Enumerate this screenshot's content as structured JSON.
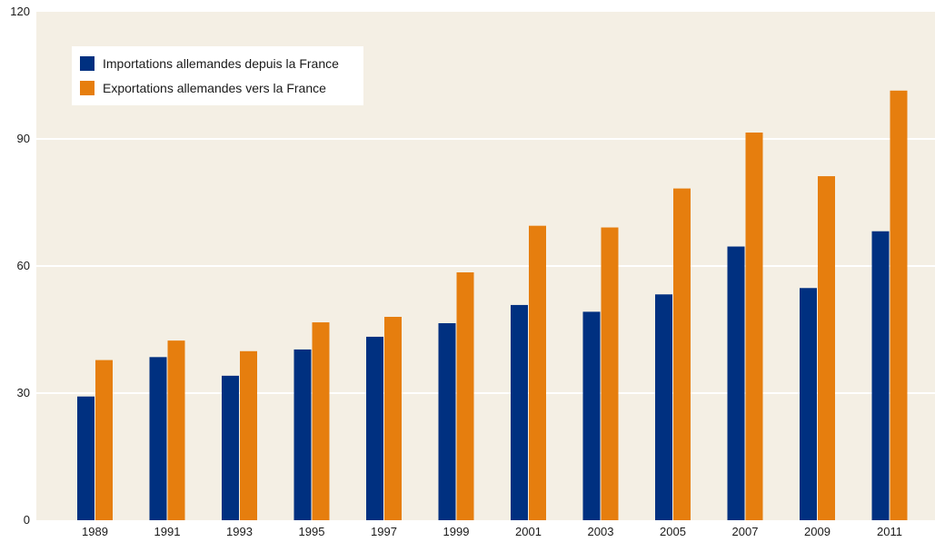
{
  "chart_data": {
    "type": "bar",
    "categories": [
      "1989",
      "1991",
      "1993",
      "1995",
      "1997",
      "1999",
      "2001",
      "2003",
      "2005",
      "2007",
      "2009",
      "2011"
    ],
    "series": [
      {
        "name": "Importations allemandes depuis la France",
        "color": "#003080",
        "values": [
          29.2,
          38.5,
          34.1,
          40.3,
          43.3,
          46.5,
          50.8,
          49.2,
          53.3,
          64.6,
          54.8,
          68.2
        ]
      },
      {
        "name": "Exportations allemandes vers la France",
        "color": "#e67e0e",
        "values": [
          37.8,
          42.4,
          39.9,
          46.7,
          48.0,
          58.5,
          69.5,
          69.1,
          78.3,
          91.5,
          81.2,
          101.4
        ]
      }
    ],
    "yticks": [
      "0",
      "30",
      "60",
      "90",
      "120"
    ],
    "ylim": [
      0,
      120
    ],
    "grid": true,
    "legend_position": "top-left",
    "background_color": "#f4efe4",
    "grid_color": "#ffffff"
  }
}
